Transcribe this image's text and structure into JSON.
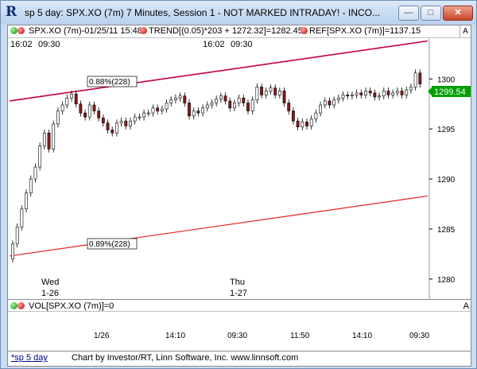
{
  "window": {
    "title": "sp 5 day: SPX.XO (7m) 7 Minutes, Session 1 - NOT MARKED INTRADAY! - INCO...",
    "app_icon_glyph": "R",
    "minimize_glyph": "—",
    "maximize_glyph": "□",
    "close_glyph": "✕"
  },
  "legend": {
    "series": "SPX.XO (7m)-01/25/11 15:48",
    "trend": "TREND[(0.05)*203 + 1272.32]=1282.45",
    "ref": "REF[SPX.XO (7m)]=1137.15",
    "a_button": "A"
  },
  "time_row": {
    "left_time": "16:02",
    "left_open": "09:30",
    "mid_time": "16:02",
    "mid_open": "09:30"
  },
  "annotations": {
    "upper_channel_label": "0.88%(228)",
    "lower_channel_label": "0.89%(228)",
    "day1_name": "Wed",
    "day1_date": "1-26",
    "day2_name": "Thu",
    "day2_date": "1-27",
    "last_price": "1299.54"
  },
  "volume": {
    "label": "VOL[SPX.XO (7m)]=0",
    "a_button": "A"
  },
  "xaxis": {
    "ticks": [
      "1/26",
      "14:10",
      "09:30",
      "11:50",
      "14:10",
      "09:30"
    ]
  },
  "status": {
    "tab": "*sp 5 day",
    "text": "Chart by Investor/RT, Linn Software, Inc. www.linnsoft.com"
  },
  "colors": {
    "upper_trend": "#c8003c",
    "lower_trend": "#e02020",
    "bull_candle": "#ffffff",
    "bear_candle": "#8b1a1a",
    "last_price_box": "#00a000"
  },
  "chart_data": {
    "type": "candlestick",
    "ylim": [
      1278,
      1304
    ],
    "yticks": [
      1280,
      1285,
      1290,
      1295,
      1300
    ],
    "upper_trend": [
      1297.8,
      1303.8
    ],
    "lower_trend": [
      1282.3,
      1288.3
    ],
    "closes": [
      1283.5,
      1285.2,
      1287.0,
      1288.6,
      1290.0,
      1291.2,
      1293.3,
      1294.6,
      1293.0,
      1295.5,
      1296.8,
      1297.4,
      1298.1,
      1298.5,
      1297.5,
      1296.6,
      1296.2,
      1297.4,
      1296.8,
      1296.1,
      1295.6,
      1294.9,
      1294.6,
      1295.6,
      1295.8,
      1295.3,
      1295.8,
      1296.2,
      1296.2,
      1296.6,
      1296.6,
      1297.1,
      1296.8,
      1297.0,
      1297.6,
      1297.9,
      1298.1,
      1298.3,
      1297.6,
      1296.3,
      1296.8,
      1296.6,
      1297.1,
      1297.4,
      1297.6,
      1298.0,
      1298.3,
      1297.8,
      1297.1,
      1297.6,
      1298.1,
      1297.6,
      1296.8,
      1297.9,
      1299.2,
      1298.4,
      1298.8,
      1299.1,
      1298.4,
      1298.8,
      1297.6,
      1296.8,
      1295.8,
      1295.2,
      1295.7,
      1295.3,
      1296.0,
      1296.6,
      1297.4,
      1297.8,
      1297.4,
      1297.9,
      1298.1,
      1298.4,
      1298.3,
      1298.4,
      1298.6,
      1298.4,
      1298.8,
      1298.6,
      1298.2,
      1298.3,
      1298.8,
      1298.4,
      1298.6,
      1298.8,
      1298.4,
      1298.9,
      1299.2,
      1300.6,
      1299.5
    ]
  }
}
